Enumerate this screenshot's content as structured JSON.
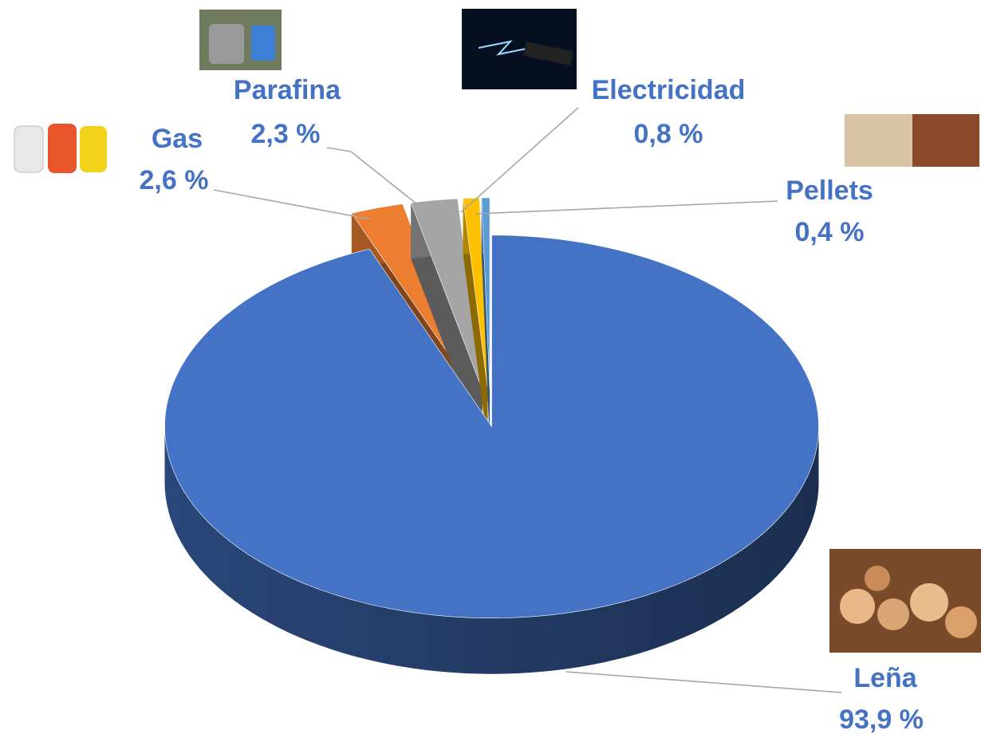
{
  "chart_data": {
    "type": "pie",
    "categories": [
      "Leña",
      "Gas",
      "Parafina",
      "Electricidad",
      "Pellets"
    ],
    "values": [
      93.9,
      2.6,
      2.3,
      0.8,
      0.4
    ],
    "value_labels": [
      "93,9 %",
      "2,6 %",
      "2,3 %",
      "0,8 %",
      "0,4 %"
    ],
    "colors": [
      "#4472c4",
      "#ed7d31",
      "#a5a5a5",
      "#ffc000",
      "#5b9bd5"
    ]
  }
}
